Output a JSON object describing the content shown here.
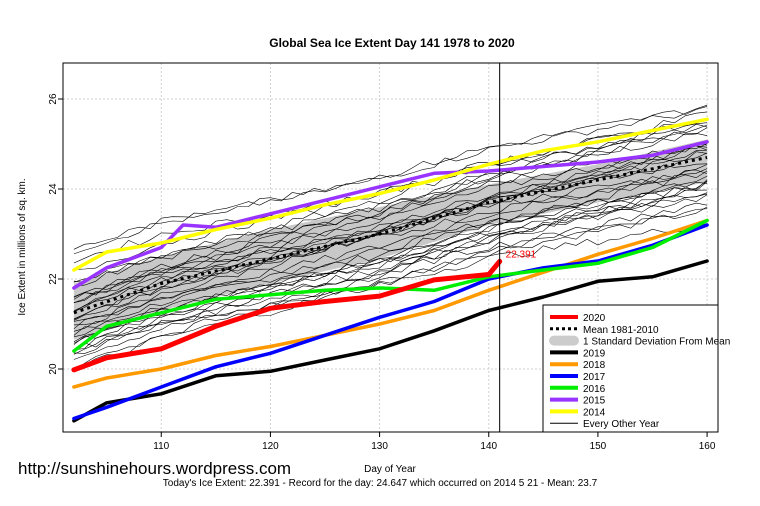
{
  "chart_data": {
    "type": "line",
    "title": "Global Sea Ice Extent Day 141 1978 to 2020",
    "xlabel": "Day of Year",
    "ylabel": "Ice Extent in millions of sq. km.",
    "xlim": [
      101,
      161
    ],
    "ylim": [
      18.6,
      26.8
    ],
    "xticks": [
      110,
      120,
      130,
      140,
      150,
      160
    ],
    "yticks": [
      20,
      22,
      24,
      26
    ],
    "grid": true,
    "current_day": 141,
    "annotation": "22.391",
    "legend": [
      {
        "label": "2020",
        "color": "#ff0000",
        "style": "thick"
      },
      {
        "label": "Mean 1981-2010",
        "color": "#000000",
        "style": "dotted"
      },
      {
        "label": "1 Standard Deviation From Mean",
        "color": "#cccccc",
        "style": "band"
      },
      {
        "label": "2019",
        "color": "#000000",
        "style": "thick"
      },
      {
        "label": "2018",
        "color": "#ff9900",
        "style": "thick"
      },
      {
        "label": "2017",
        "color": "#0000ff",
        "style": "thick"
      },
      {
        "label": "2016",
        "color": "#00ee00",
        "style": "thick"
      },
      {
        "label": "2015",
        "color": "#9933ff",
        "style": "thick"
      },
      {
        "label": "2014",
        "color": "#ffff00",
        "style": "thick"
      },
      {
        "label": "Every Other Year",
        "color": "#000000",
        "style": "thin"
      }
    ],
    "mean": {
      "name": "Mean 1981-2010",
      "x": [
        102,
        110,
        120,
        130,
        140,
        150,
        160
      ],
      "y": [
        21.25,
        21.9,
        22.45,
        23.0,
        23.7,
        24.2,
        24.7
      ]
    },
    "std_band": {
      "x": [
        102,
        110,
        120,
        130,
        140,
        150,
        160
      ],
      "upper": [
        21.9,
        22.5,
        23.1,
        23.6,
        24.1,
        24.55,
        25.1
      ],
      "lower": [
        20.65,
        21.3,
        21.9,
        22.45,
        23.2,
        23.7,
        24.15
      ]
    },
    "series": [
      {
        "name": "2020",
        "color": "#ff0000",
        "x": [
          102,
          105,
          110,
          115,
          120,
          125,
          130,
          135,
          140,
          141
        ],
        "y": [
          19.98,
          20.25,
          20.45,
          20.95,
          21.35,
          21.5,
          21.62,
          21.98,
          22.1,
          22.391
        ]
      },
      {
        "name": "2019",
        "color": "#000000",
        "x": [
          102,
          105,
          110,
          115,
          120,
          125,
          130,
          135,
          140,
          145,
          150,
          155,
          160
        ],
        "y": [
          18.85,
          19.25,
          19.45,
          19.85,
          19.95,
          20.2,
          20.45,
          20.85,
          21.3,
          21.6,
          21.95,
          22.05,
          22.4
        ]
      },
      {
        "name": "2018",
        "color": "#ff9900",
        "x": [
          102,
          105,
          110,
          115,
          120,
          125,
          130,
          135,
          140,
          145,
          150,
          155,
          160
        ],
        "y": [
          19.6,
          19.8,
          20.0,
          20.3,
          20.5,
          20.75,
          21.0,
          21.3,
          21.75,
          22.15,
          22.55,
          22.9,
          23.3
        ]
      },
      {
        "name": "2017",
        "color": "#0000ff",
        "x": [
          102,
          105,
          110,
          115,
          120,
          125,
          130,
          135,
          140,
          145,
          150,
          155,
          160
        ],
        "y": [
          18.9,
          19.15,
          19.6,
          20.05,
          20.35,
          20.75,
          21.15,
          21.5,
          22.0,
          22.25,
          22.4,
          22.75,
          23.2
        ]
      },
      {
        "name": "2016",
        "color": "#00ee00",
        "x": [
          102,
          105,
          110,
          115,
          120,
          125,
          130,
          135,
          140,
          145,
          150,
          155,
          160
        ],
        "y": [
          20.4,
          20.95,
          21.25,
          21.55,
          21.65,
          21.75,
          21.8,
          21.75,
          22.05,
          22.2,
          22.35,
          22.7,
          23.3
        ]
      },
      {
        "name": "2015",
        "color": "#9933ff",
        "x": [
          102,
          105,
          110,
          112,
          115,
          120,
          125,
          130,
          135,
          140,
          145,
          150,
          155,
          160
        ],
        "y": [
          21.8,
          22.25,
          22.7,
          23.2,
          23.15,
          23.45,
          23.75,
          24.05,
          24.35,
          24.4,
          24.5,
          24.6,
          24.75,
          25.05
        ]
      },
      {
        "name": "2014",
        "color": "#ffff00",
        "x": [
          102,
          105,
          110,
          115,
          120,
          125,
          130,
          135,
          140,
          145,
          150,
          155,
          160
        ],
        "y": [
          22.2,
          22.6,
          22.8,
          23.1,
          23.35,
          23.65,
          23.9,
          24.2,
          24.55,
          24.85,
          25.05,
          25.3,
          25.55
        ]
      }
    ]
  },
  "watermark": "http://sunshinehours.wordpress.com",
  "footer": "Today's Ice Extent: 22.391   - Record for the day: 24.647 which occurred on 2014 5 21   - Mean: 23.7"
}
